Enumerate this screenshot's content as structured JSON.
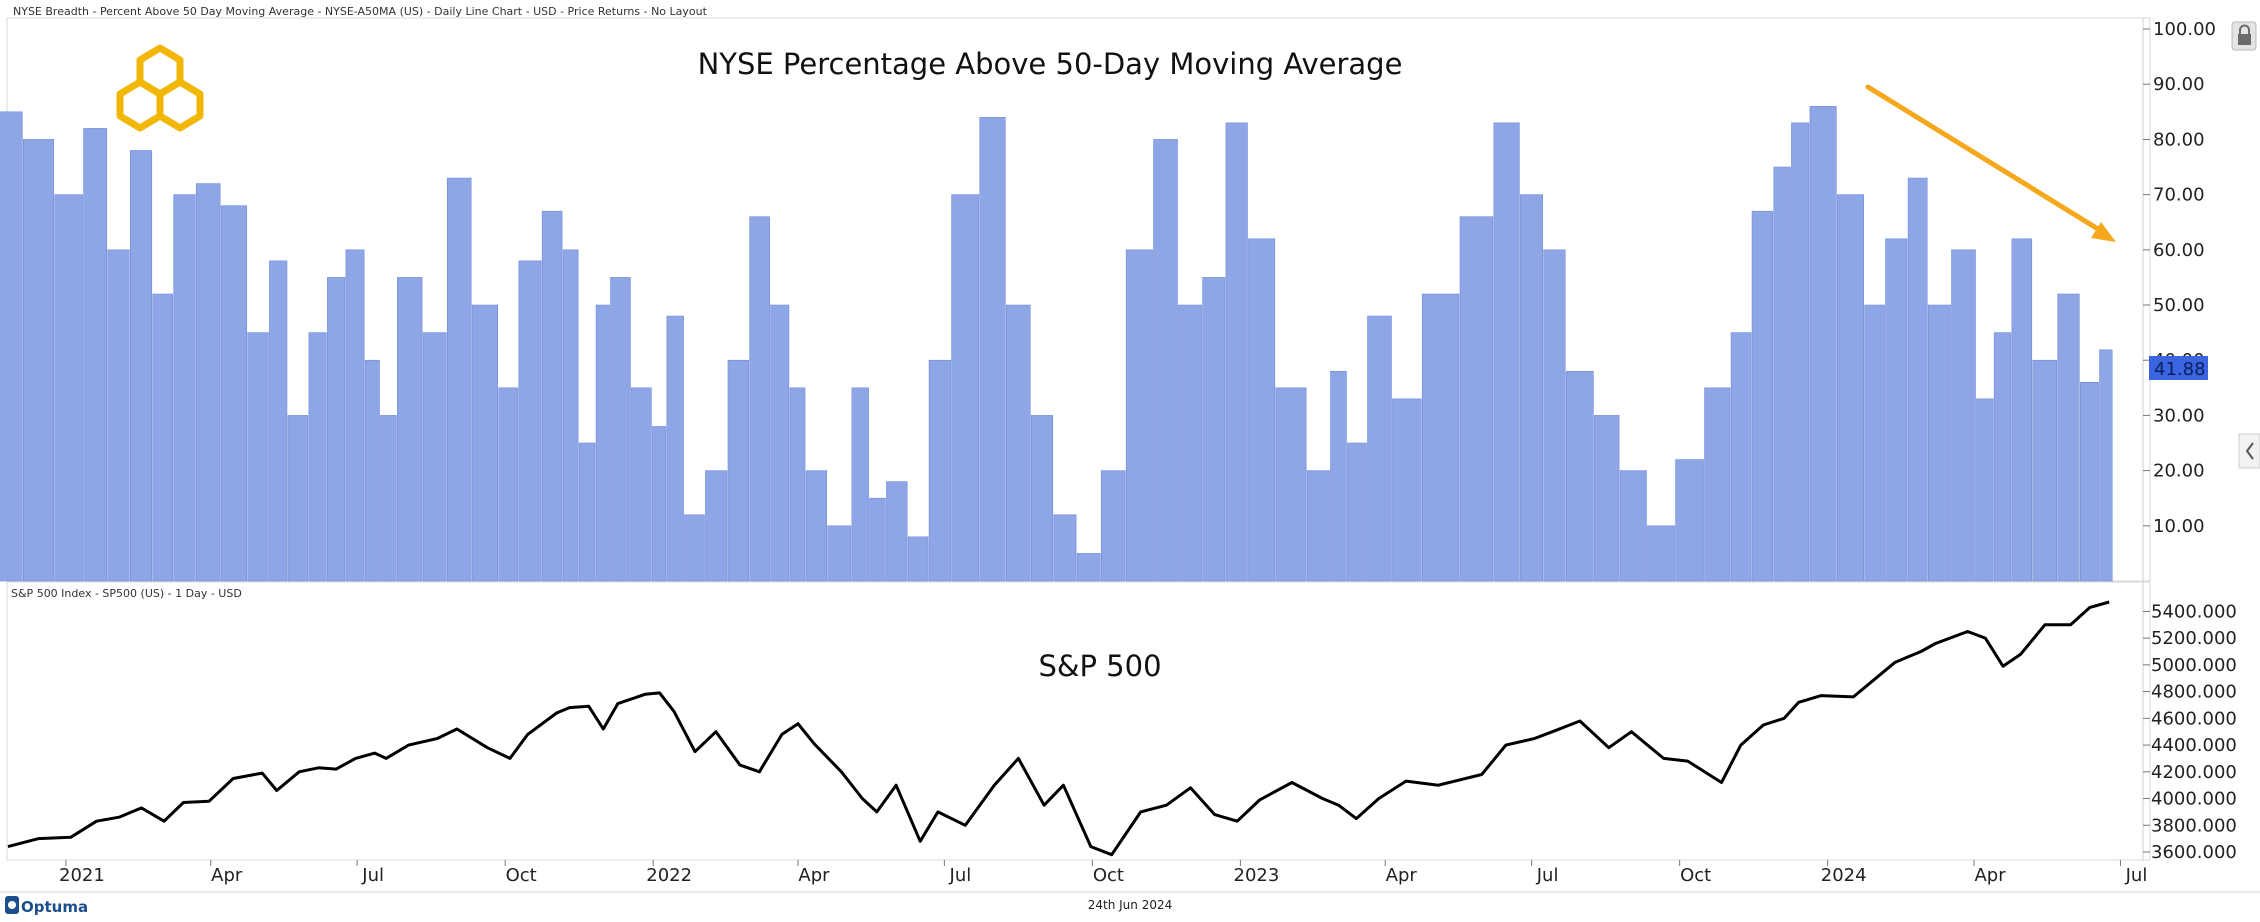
{
  "header": {
    "top_chart_caption": "NYSE Breadth - Percent Above 50 Day Moving Average - NYSE-A50MA (US) - Daily Line Chart - USD - Price Returns - No Layout",
    "bottom_chart_caption": "S&P 500 Index  - SP500 (US) - 1 Day - USD"
  },
  "footer": {
    "brand": "Optuma",
    "date": "24th Jun 2024"
  },
  "icons": {
    "lock": "lock-icon",
    "collapse": "chevron-left-icon",
    "logo": "hexagon-rings-logo",
    "brand": "optuma-logo-icon"
  },
  "colors": {
    "bars": "#8fa6e6",
    "bar_edge": "#6f8bd9",
    "sp500_line": "#000000",
    "arrow": "#f5a81c",
    "badge": "#3b64e0",
    "logo": "#f2b705"
  },
  "chart_data": [
    {
      "type": "bar",
      "title": "NYSE Percentage Above 50-Day Moving Average",
      "last_value_label": "41.88",
      "ylim": [
        0,
        102
      ],
      "yticks": [
        "10.00",
        "20.00",
        "30.00",
        "40.00",
        "50.00",
        "60.00",
        "70.00",
        "80.00",
        "90.00",
        "100.00"
      ],
      "x_tick_labels": [
        "2021",
        "Apr",
        "Jul",
        "Oct",
        "2022",
        "Apr",
        "Jul",
        "Oct",
        "2023",
        "Apr",
        "Jul",
        "Oct",
        "2024",
        "Apr",
        "Jul"
      ],
      "x_tick_dates": [
        "2021-01-01",
        "2021-04-01",
        "2021-07-01",
        "2021-10-01",
        "2022-01-01",
        "2022-04-01",
        "2022-07-01",
        "2022-10-01",
        "2023-01-01",
        "2023-04-01",
        "2023-07-01",
        "2023-10-01",
        "2024-01-01",
        "2024-04-01",
        "2024-07-01"
      ],
      "x_range": [
        "2020-11-26",
        "2024-07-15"
      ],
      "annotation": {
        "type": "arrow",
        "direction": "down-right",
        "meaning": "declining peaks"
      },
      "x": [
        "2020-11-26",
        "2020-12-15",
        "2021-01-04",
        "2021-01-20",
        "2021-02-03",
        "2021-02-17",
        "2021-03-03",
        "2021-03-15",
        "2021-03-31",
        "2021-04-15",
        "2021-05-03",
        "2021-05-12",
        "2021-05-26",
        "2021-06-07",
        "2021-06-18",
        "2021-06-30",
        "2021-07-12",
        "2021-07-19",
        "2021-08-02",
        "2021-08-20",
        "2021-09-01",
        "2021-09-20",
        "2021-10-04",
        "2021-10-15",
        "2021-11-02",
        "2021-11-10",
        "2021-11-22",
        "2021-12-01",
        "2021-12-10",
        "2021-12-27",
        "2022-01-05",
        "2022-01-14",
        "2022-01-27",
        "2022-02-09",
        "2022-02-24",
        "2022-03-08",
        "2022-03-22",
        "2022-04-01",
        "2022-04-11",
        "2022-04-28",
        "2022-05-11",
        "2022-05-20",
        "2022-06-01",
        "2022-06-16",
        "2022-06-27",
        "2022-07-14",
        "2022-08-01",
        "2022-08-16",
        "2022-09-01",
        "2022-09-13",
        "2022-09-30",
        "2022-10-13",
        "2022-10-31",
        "2022-11-16",
        "2022-12-01",
        "2022-12-16",
        "2022-12-30",
        "2023-01-13",
        "2023-02-02",
        "2023-02-21",
        "2023-03-03",
        "2023-03-14",
        "2023-03-28",
        "2023-04-14",
        "2023-05-04",
        "2023-05-31",
        "2023-06-15",
        "2023-07-03",
        "2023-07-14",
        "2023-07-31",
        "2023-08-18",
        "2023-09-01",
        "2023-09-21",
        "2023-10-06",
        "2023-10-27",
        "2023-11-08",
        "2023-11-22",
        "2023-12-05",
        "2023-12-14",
        "2023-12-28",
        "2024-01-17",
        "2024-01-31",
        "2024-02-12",
        "2024-02-28",
        "2024-03-08",
        "2024-03-28",
        "2024-04-08",
        "2024-04-19",
        "2024-04-30",
        "2024-05-15",
        "2024-05-31",
        "2024-06-12",
        "2024-06-24"
      ],
      "values": [
        85,
        80,
        70,
        82,
        60,
        78,
        52,
        70,
        72,
        68,
        45,
        58,
        30,
        45,
        55,
        60,
        40,
        30,
        55,
        45,
        73,
        50,
        35,
        58,
        67,
        60,
        25,
        50,
        55,
        35,
        28,
        48,
        12,
        20,
        40,
        66,
        50,
        35,
        20,
        10,
        35,
        15,
        18,
        8,
        40,
        70,
        84,
        50,
        30,
        12,
        5,
        20,
        60,
        80,
        50,
        55,
        83,
        62,
        35,
        20,
        38,
        25,
        48,
        33,
        52,
        66,
        83,
        70,
        60,
        38,
        30,
        20,
        10,
        22,
        35,
        45,
        67,
        75,
        83,
        86,
        70,
        50,
        62,
        73,
        50,
        60,
        33,
        45,
        62,
        40,
        52,
        36,
        41.88
      ]
    },
    {
      "type": "line",
      "title": "S&P 500",
      "name": "S&P 500",
      "ylim": [
        3540,
        5620
      ],
      "yticks": [
        "3600.000",
        "3800.000",
        "4000.000",
        "4200.000",
        "4400.000",
        "4600.000",
        "4800.000",
        "5000.000",
        "5200.000",
        "5400.000"
      ],
      "x": [
        "2020-11-26",
        "2020-12-15",
        "2021-01-04",
        "2021-01-20",
        "2021-02-03",
        "2021-02-17",
        "2021-03-03",
        "2021-03-15",
        "2021-03-31",
        "2021-04-15",
        "2021-05-03",
        "2021-05-12",
        "2021-05-26",
        "2021-06-07",
        "2021-06-18",
        "2021-06-30",
        "2021-07-12",
        "2021-07-19",
        "2021-08-02",
        "2021-08-20",
        "2021-09-01",
        "2021-09-20",
        "2021-10-04",
        "2021-10-15",
        "2021-11-02",
        "2021-11-10",
        "2021-11-22",
        "2021-12-01",
        "2021-12-10",
        "2021-12-27",
        "2022-01-05",
        "2022-01-14",
        "2022-01-27",
        "2022-02-09",
        "2022-02-24",
        "2022-03-08",
        "2022-03-22",
        "2022-04-01",
        "2022-04-11",
        "2022-04-28",
        "2022-05-11",
        "2022-05-20",
        "2022-06-01",
        "2022-06-16",
        "2022-06-27",
        "2022-07-14",
        "2022-08-01",
        "2022-08-16",
        "2022-09-01",
        "2022-09-13",
        "2022-09-30",
        "2022-10-13",
        "2022-10-31",
        "2022-11-16",
        "2022-12-01",
        "2022-12-16",
        "2022-12-30",
        "2023-01-13",
        "2023-02-02",
        "2023-02-21",
        "2023-03-03",
        "2023-03-14",
        "2023-03-28",
        "2023-04-14",
        "2023-05-04",
        "2023-05-31",
        "2023-06-15",
        "2023-07-03",
        "2023-07-14",
        "2023-07-31",
        "2023-08-18",
        "2023-09-01",
        "2023-09-21",
        "2023-10-06",
        "2023-10-27",
        "2023-11-08",
        "2023-11-22",
        "2023-12-05",
        "2023-12-14",
        "2023-12-28",
        "2024-01-17",
        "2024-01-31",
        "2024-02-12",
        "2024-02-28",
        "2024-03-08",
        "2024-03-28",
        "2024-04-08",
        "2024-04-19",
        "2024-04-30",
        "2024-05-15",
        "2024-05-31",
        "2024-06-12",
        "2024-06-24"
      ],
      "values": [
        3640,
        3700,
        3710,
        3830,
        3860,
        3930,
        3830,
        3970,
        3980,
        4150,
        4190,
        4060,
        4200,
        4230,
        4220,
        4300,
        4340,
        4300,
        4400,
        4450,
        4520,
        4380,
        4300,
        4480,
        4640,
        4680,
        4690,
        4520,
        4710,
        4780,
        4790,
        4650,
        4350,
        4500,
        4250,
        4200,
        4480,
        4560,
        4410,
        4200,
        4000,
        3900,
        4100,
        3680,
        3900,
        3800,
        4100,
        4300,
        3950,
        4100,
        3640,
        3580,
        3900,
        3950,
        4080,
        3880,
        3830,
        3990,
        4120,
        4000,
        3950,
        3850,
        4000,
        4130,
        4100,
        4180,
        4400,
        4450,
        4500,
        4580,
        4380,
        4500,
        4300,
        4280,
        4120,
        4400,
        4550,
        4600,
        4720,
        4770,
        4760,
        4900,
        5020,
        5100,
        5160,
        5250,
        5200,
        4990,
        5080,
        5300,
        5300,
        5430,
        5470
      ]
    }
  ]
}
